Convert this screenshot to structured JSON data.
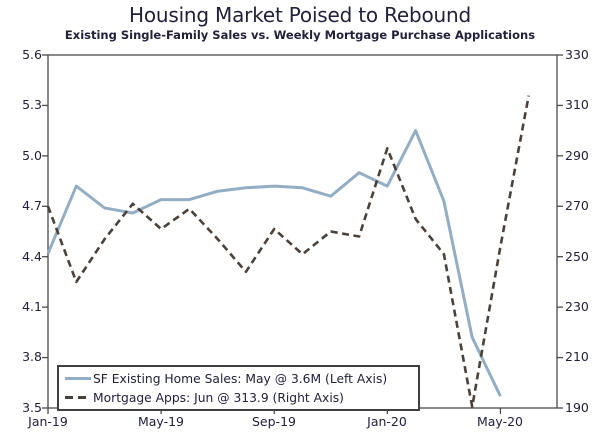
{
  "title": "Housing Market Poised to Rebound",
  "subtitle": "Existing Single-Family Sales vs. Weekly Mortgage Purchase Applications",
  "colors": {
    "sales_line": "#93AEC4",
    "mortgage_line": "#4A413B",
    "axis": "#4A4A4A",
    "text": "#21213B"
  },
  "chart_data": {
    "type": "line",
    "title": "Housing Market Poised to Rebound",
    "subtitle": "Existing Single-Family Sales vs. Weekly Mortgage Purchase Applications",
    "x": [
      "Jan-19",
      "Feb-19",
      "Mar-19",
      "Apr-19",
      "May-19",
      "Jun-19",
      "Jul-19",
      "Aug-19",
      "Sep-19",
      "Oct-19",
      "Nov-19",
      "Dec-19",
      "Jan-20",
      "Feb-20",
      "Mar-20",
      "Apr-20",
      "May-20",
      "Jun-20"
    ],
    "x_tick_indices": [
      0,
      4,
      8,
      12,
      16
    ],
    "x_tick_labels": [
      "Jan-19",
      "May-19",
      "Sep-19",
      "Jan-20",
      "May-20"
    ],
    "left_axis": {
      "min": 3.5,
      "max": 5.6,
      "ticks": [
        "5.6",
        "5.3",
        "5.0",
        "4.7",
        "4.4",
        "4.1",
        "3.8",
        "3.5"
      ]
    },
    "right_axis": {
      "min": 190,
      "max": 330,
      "ticks": [
        "330",
        "310",
        "290",
        "270",
        "250",
        "230",
        "210",
        "190"
      ]
    },
    "grid": false,
    "legend_position": "bottom-left",
    "series": [
      {
        "id": "sf-existing-home-sales-line",
        "name": "SF Existing Home Sales: May @ 3.6M (Left Axis)",
        "axis": "left",
        "style": "solid",
        "color": "#93AEC4",
        "values": [
          4.42,
          4.82,
          4.69,
          4.66,
          4.74,
          4.74,
          4.79,
          4.81,
          4.82,
          4.81,
          4.76,
          4.9,
          4.82,
          5.15,
          4.73,
          3.92,
          3.57,
          null
        ]
      },
      {
        "id": "mortgage-apps-line",
        "name": "Mortgage Apps: Jun @ 313.9 (Right Axis)",
        "axis": "right",
        "style": "dashed",
        "color": "#4A413B",
        "values": [
          270,
          240,
          257,
          271,
          261,
          269,
          257,
          244,
          261,
          251,
          260,
          258,
          293,
          265,
          251,
          190.5,
          254,
          313.9
        ]
      }
    ]
  }
}
